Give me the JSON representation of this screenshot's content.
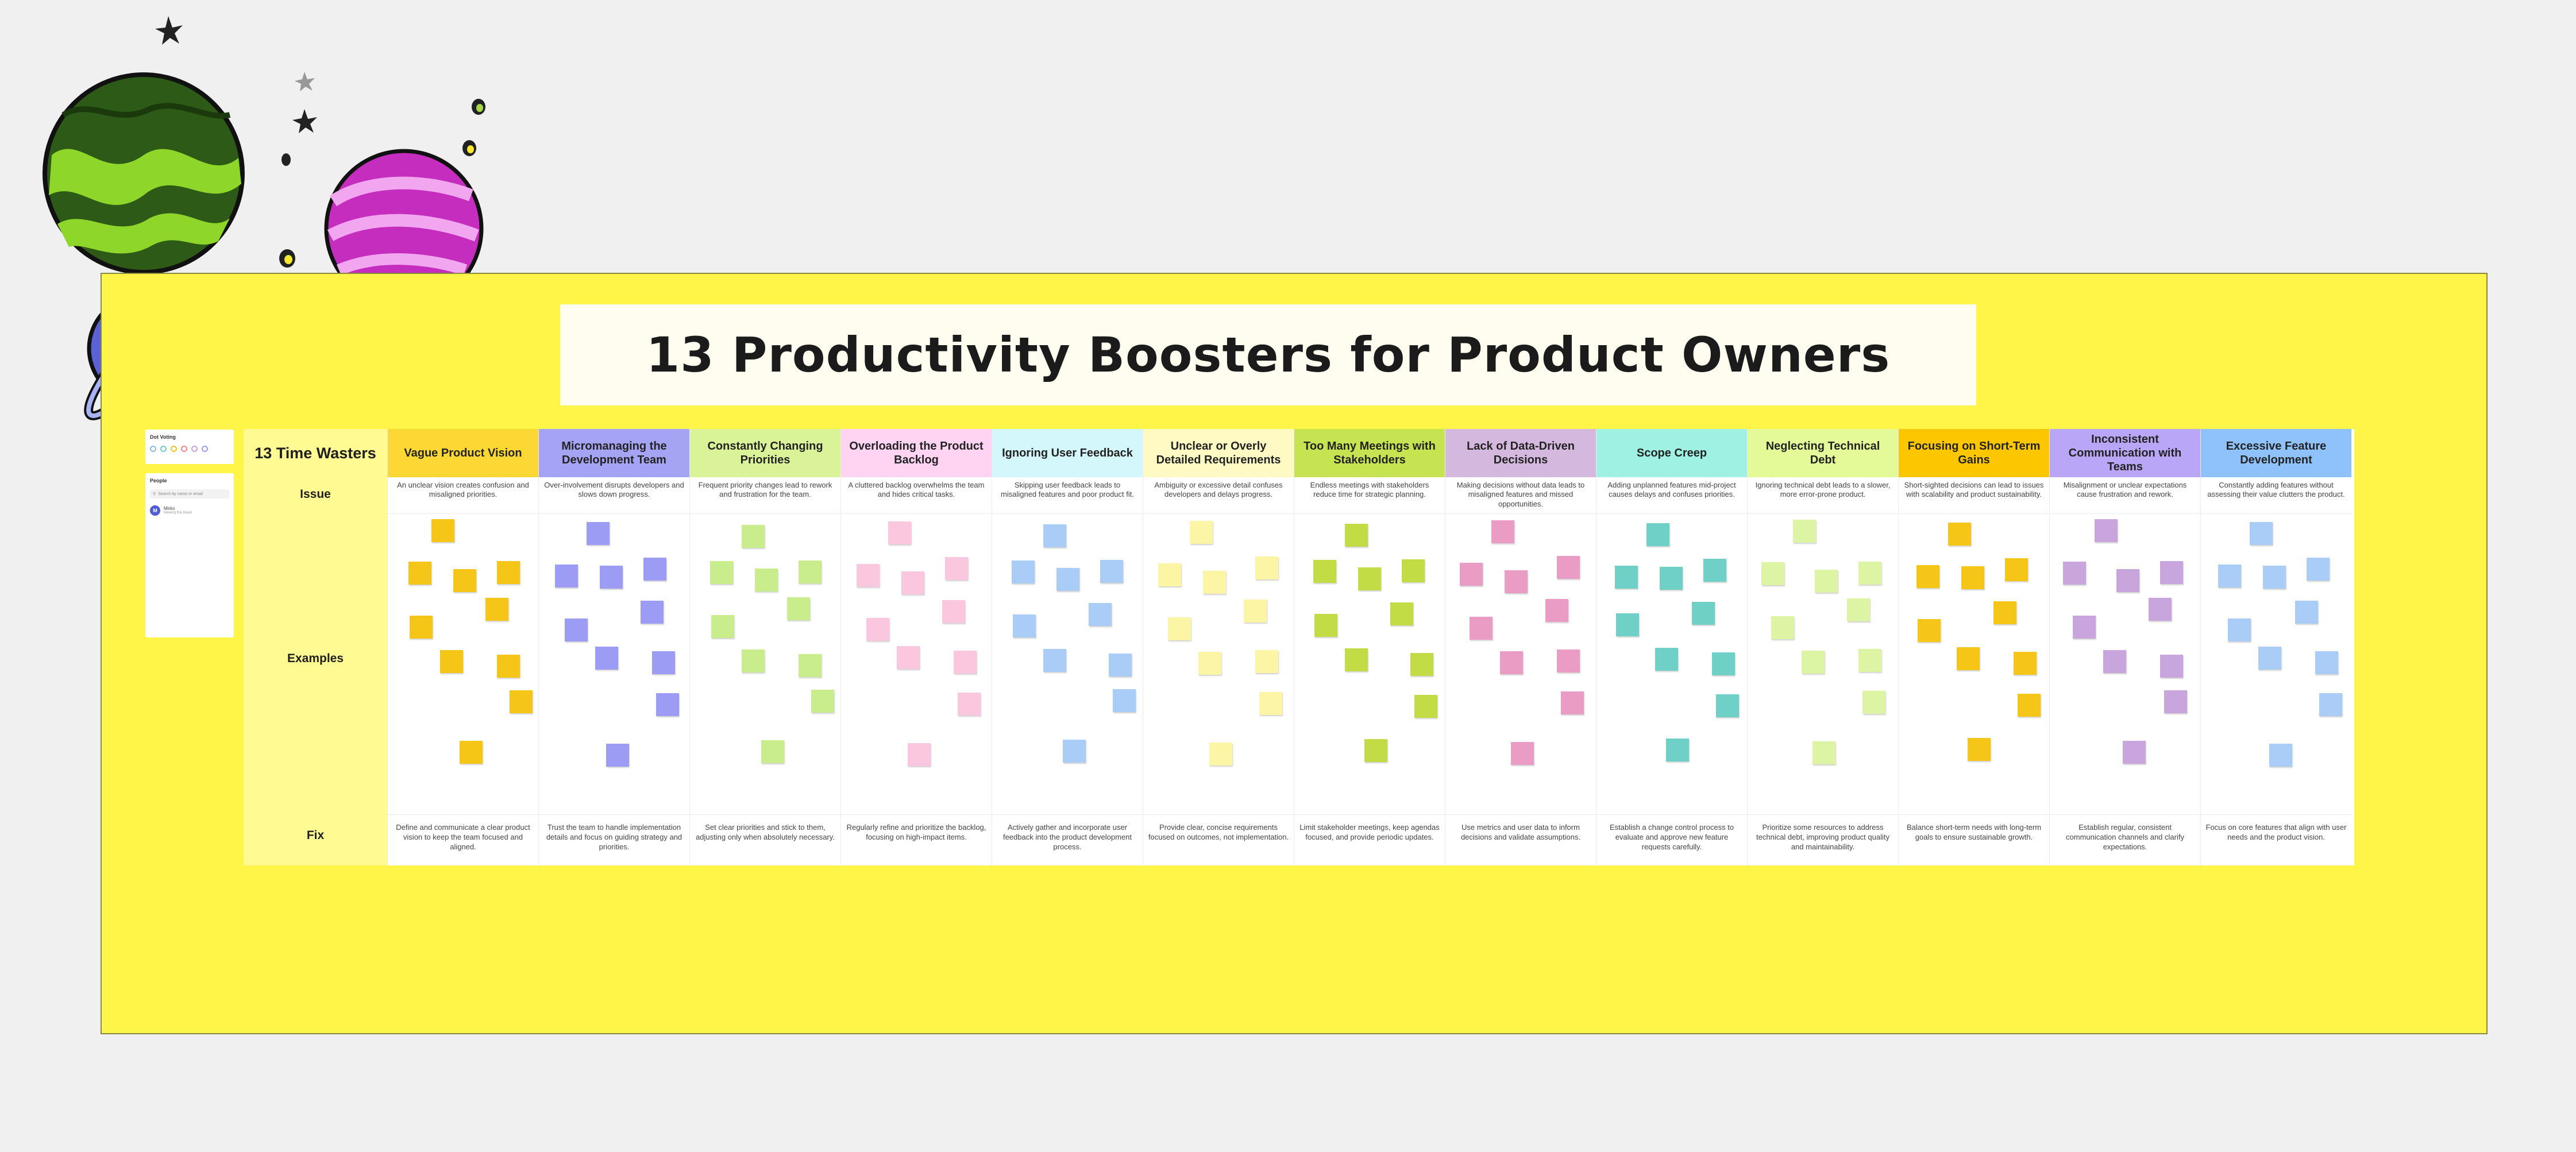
{
  "title": "13 Productivity Boosters for Product Owners",
  "left_panel": {
    "voting_label": "Dot Voting",
    "people_label": "People",
    "search_placeholder": "Search by name or email",
    "user_initial": "M",
    "user_name": "Mirko",
    "user_status": "Viewing this board"
  },
  "row_labels": {
    "corner": "13 Time Wasters",
    "issue": "Issue",
    "examples": "Examples",
    "fix": "Fix"
  },
  "columns": [
    {
      "header": "Vague Product Vision",
      "header_color": "#fdd835",
      "note_color": "#f5c518",
      "issue": "An unclear vision creates confusion and misaligned priorities.",
      "fix": "Define and communicate a clear product vision to keep the team focused and aligned."
    },
    {
      "header": "Micromanaging the Development Team",
      "header_color": "#a5a3f4",
      "note_color": "#9c9cf5",
      "issue": "Over-involvement disrupts developers and slows down progress.",
      "fix": "Trust the team to handle implementation details and focus on guiding strategy and priorities."
    },
    {
      "header": "Constantly Changing Priorities",
      "header_color": "#dbf398",
      "note_color": "#c9ec8d",
      "issue": "Frequent priority changes lead to rework and frustration for the team.",
      "fix": "Set clear priorities and stick to them, adjusting only when absolutely necessary."
    },
    {
      "header": "Overloading the Product Backlog",
      "header_color": "#ffd3f2",
      "note_color": "#fbc7de",
      "issue": "A cluttered backlog overwhelms the team and hides critical tasks.",
      "fix": "Regularly refine and prioritize the backlog, focusing on high-impact items."
    },
    {
      "header": "Ignoring User Feedback",
      "header_color": "#d4f7fb",
      "note_color": "#a9cdf6",
      "issue": "Skipping user feedback leads to misaligned features and poor product fit.",
      "fix": "Actively gather and incorporate user feedback into the product development process."
    },
    {
      "header": "Unclear or Overly Detailed Requirements",
      "header_color": "#fff9c4",
      "note_color": "#fdf5a6",
      "issue": "Ambiguity or excessive detail confuses developers and delays progress.",
      "fix": "Provide clear, concise requirements focused on outcomes, not implementation."
    },
    {
      "header": "Too Many Meetings with Stakeholders",
      "header_color": "#c6e352",
      "note_color": "#c2dc45",
      "issue": "Endless meetings with stakeholders reduce time for strategic planning.",
      "fix": "Limit stakeholder meetings, keep agendas focused, and provide periodic updates."
    },
    {
      "header": "Lack of Data-Driven Decisions",
      "header_color": "#d5b8de",
      "note_color": "#ea9cc5",
      "issue": "Making decisions without data leads to misaligned features and missed opportunities.",
      "fix": "Use metrics and user data to inform decisions and validate assumptions."
    },
    {
      "header": "Scope Creep",
      "header_color": "#9ff2e3",
      "note_color": "#6fd0c8",
      "issue": "Adding unplanned features mid-project causes delays and confuses priorities.",
      "fix": "Establish a change control process to evaluate and approve new feature requests carefully."
    },
    {
      "header": "Neglecting Technical Debt",
      "header_color": "#e4fa98",
      "note_color": "#dcf4a3",
      "issue": "Ignoring technical debt leads to a slower, more error-prone product.",
      "fix": "Prioritize some resources to address technical debt, improving product quality and maintainability."
    },
    {
      "header": "Focusing on Short-Term Gains",
      "header_color": "#fcc700",
      "note_color": "#f5c518",
      "issue": "Short-sighted decisions can lead to issues with scalability and product sustainability.",
      "fix": "Balance short-term needs with long-term goals to ensure sustainable growth."
    },
    {
      "header": "Inconsistent Communication with Teams",
      "header_color": "#b9a6f7",
      "note_color": "#c9a5dd",
      "issue": "Misalignment or unclear expectations cause frustration and rework.",
      "fix": "Establish regular, consistent communication channels and clarify expectations."
    },
    {
      "header": "Excessive Feature Development",
      "header_color": "#8fc2fb",
      "note_color": "#a9cdf6",
      "issue": "Constantly adding features without assessing their value clutters the product.",
      "fix": "Focus on core features that align with user needs and the product vision."
    }
  ]
}
